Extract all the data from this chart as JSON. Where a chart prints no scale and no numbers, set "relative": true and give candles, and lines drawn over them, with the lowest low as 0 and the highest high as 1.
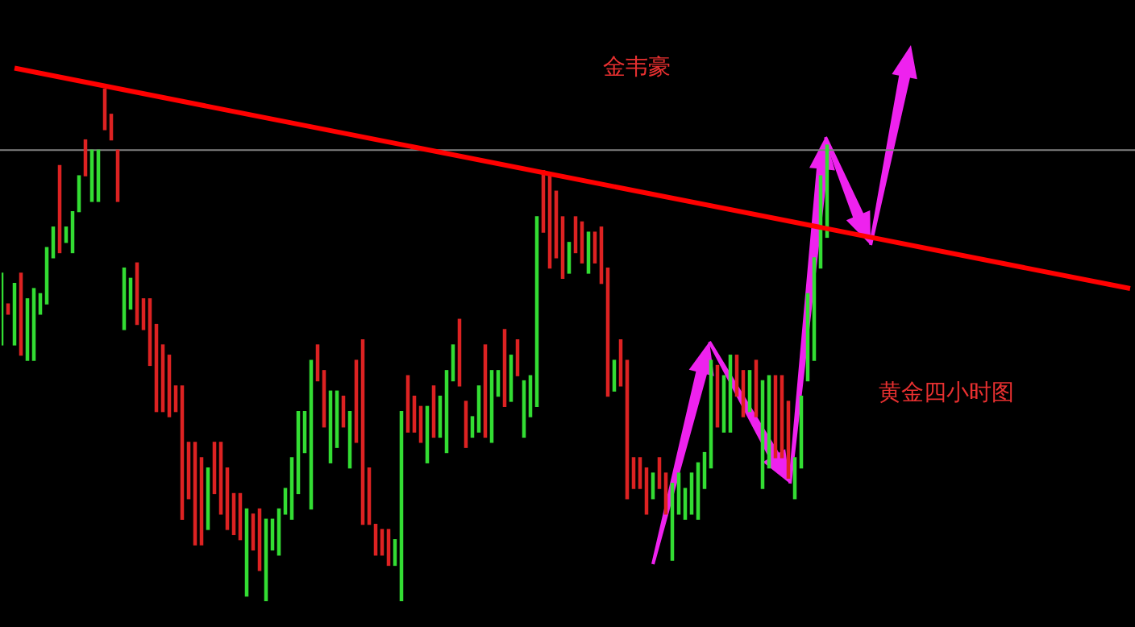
{
  "chart_data": {
    "type": "candlestick",
    "title": "黄金四小时图",
    "annotations": [
      "金韦豪"
    ],
    "relative": true,
    "tick_labels": false,
    "legend": false,
    "categories": [
      null,
      null,
      null,
      null,
      null,
      null,
      null,
      null,
      null,
      null,
      null,
      null,
      null,
      null,
      null,
      null,
      null,
      null,
      null,
      null,
      null,
      null,
      null,
      null,
      null,
      null,
      null,
      null,
      null,
      null,
      null,
      null,
      null,
      null,
      null,
      null,
      null,
      null,
      null,
      null,
      null,
      null,
      null,
      null,
      null,
      null,
      null,
      null,
      null,
      null,
      null,
      null,
      null,
      null,
      null,
      null,
      null,
      null,
      null,
      null,
      null,
      null,
      null,
      null,
      null,
      null,
      null,
      null,
      null,
      null,
      null,
      null,
      null,
      null,
      null,
      null,
      null,
      null,
      null,
      null,
      null,
      null,
      null,
      null,
      null,
      null,
      null,
      null,
      null,
      null,
      null,
      null,
      null,
      null,
      null,
      null,
      null,
      null,
      null,
      null,
      null,
      null,
      null,
      null,
      null,
      null,
      null,
      null,
      null,
      null,
      null,
      null,
      null,
      null,
      null,
      null,
      null,
      null,
      null,
      null,
      null,
      null,
      null,
      null,
      null,
      null,
      null,
      null,
      null,
      null,
      null,
      null,
      null,
      null,
      null,
      null,
      null,
      null,
      null,
      null,
      null,
      null,
      null,
      null,
      null,
      null,
      null,
      null,
      null,
      null,
      null,
      null,
      null,
      null,
      null,
      null,
      null,
      null,
      null,
      null,
      null,
      null,
      null,
      null,
      null,
      null,
      null,
      null,
      null,
      null,
      null,
      null,
      null,
      null,
      null,
      null
    ],
    "ohlc": [
      [
        0.5,
        0.64,
        0.5,
        0.64
      ],
      [
        0.58,
        0.58,
        0.56,
        0.56
      ],
      [
        0.5,
        0.62,
        0.5,
        0.62
      ],
      [
        0.64,
        0.64,
        0.48,
        0.48
      ],
      [
        0.47,
        0.59,
        0.47,
        0.59
      ],
      [
        0.47,
        0.61,
        0.47,
        0.61
      ],
      [
        0.56,
        0.6,
        0.56,
        0.6
      ],
      [
        0.58,
        0.69,
        0.58,
        0.69
      ],
      [
        0.67,
        0.73,
        0.67,
        0.73
      ],
      [
        0.85,
        0.85,
        0.68,
        0.68
      ],
      [
        0.7,
        0.73,
        0.7,
        0.73
      ],
      [
        0.68,
        0.76,
        0.68,
        0.76
      ],
      [
        0.76,
        0.83,
        0.76,
        0.83
      ],
      [
        0.9,
        0.9,
        0.83,
        0.83
      ],
      [
        0.78,
        0.88,
        0.78,
        0.88
      ],
      [
        0.78,
        0.88,
        0.78,
        0.88
      ],
      [
        1,
        1,
        0.92,
        0.92
      ],
      [
        0.95,
        0.95,
        0.9,
        0.9
      ],
      [
        0.88,
        0.88,
        0.78,
        0.78
      ],
      [
        0.53,
        0.65,
        0.53,
        0.65
      ],
      [
        0.57,
        0.63,
        0.57,
        0.63
      ],
      [
        0.66,
        0.66,
        0.54,
        0.54
      ],
      [
        0.59,
        0.59,
        0.53,
        0.53
      ],
      [
        0.59,
        0.59,
        0.46,
        0.46
      ],
      [
        0.54,
        0.54,
        0.37,
        0.37
      ],
      [
        0.5,
        0.5,
        0.37,
        0.37
      ],
      [
        0.48,
        0.48,
        0.36,
        0.36
      ],
      [
        0.42,
        0.42,
        0.37,
        0.37
      ],
      [
        0.42,
        0.42,
        0.16,
        0.16
      ],
      [
        0.31,
        0.31,
        0.2,
        0.2
      ],
      [
        0.31,
        0.31,
        0.11,
        0.11
      ],
      [
        0.28,
        0.28,
        0.11,
        0.11
      ],
      [
        0.14,
        0.26,
        0.14,
        0.26
      ],
      [
        0.31,
        0.31,
        0.21,
        0.21
      ],
      [
        0.31,
        0.31,
        0.17,
        0.17
      ],
      [
        0.26,
        0.26,
        0.14,
        0.14
      ],
      [
        0.21,
        0.21,
        0.13,
        0.13
      ],
      [
        0.21,
        0.21,
        0.12,
        0.12
      ],
      [
        0.01,
        0.18,
        0.01,
        0.18
      ],
      [
        0.17,
        0.17,
        0.1,
        0.1
      ],
      [
        0.18,
        0.18,
        0.06,
        0.06
      ],
      [
        0,
        0.16,
        0,
        0.16
      ],
      [
        0.1,
        0.16,
        0.1,
        0.16
      ],
      [
        0.09,
        0.18,
        0.09,
        0.18
      ],
      [
        0.17,
        0.22,
        0.17,
        0.22
      ],
      [
        0.16,
        0.28,
        0.16,
        0.28
      ],
      [
        0.21,
        0.37,
        0.21,
        0.37
      ],
      [
        0.29,
        0.37,
        0.29,
        0.37
      ],
      [
        0.18,
        0.47,
        0.18,
        0.47
      ],
      [
        0.5,
        0.5,
        0.43,
        0.43
      ],
      [
        0.45,
        0.45,
        0.34,
        0.34
      ],
      [
        0.27,
        0.41,
        0.27,
        0.41
      ],
      [
        0.3,
        0.41,
        0.3,
        0.41
      ],
      [
        0.4,
        0.4,
        0.34,
        0.34
      ],
      [
        0.26,
        0.37,
        0.26,
        0.37
      ],
      [
        0.47,
        0.47,
        0.31,
        0.31
      ],
      [
        0.51,
        0.51,
        0.15,
        0.15
      ],
      [
        0.26,
        0.26,
        0.15,
        0.15
      ],
      [
        0.15,
        0.15,
        0.09,
        0.09
      ],
      [
        0.14,
        0.14,
        0.09,
        0.09
      ],
      [
        0.14,
        0.14,
        0.07,
        0.07
      ],
      [
        0.07,
        0.12,
        0.07,
        0.12
      ],
      [
        0,
        0.37,
        0,
        0.37
      ],
      [
        0.44,
        0.44,
        0.33,
        0.33
      ],
      [
        0.4,
        0.4,
        0.33,
        0.33
      ],
      [
        0.38,
        0.38,
        0.31,
        0.31
      ],
      [
        0.27,
        0.38,
        0.27,
        0.38
      ],
      [
        0.42,
        0.42,
        0.32,
        0.32
      ],
      [
        0.32,
        0.4,
        0.32,
        0.4
      ],
      [
        0.29,
        0.45,
        0.29,
        0.45
      ],
      [
        0.43,
        0.5,
        0.43,
        0.5
      ],
      [
        0.55,
        0.55,
        0.42,
        0.42
      ],
      [
        0.39,
        0.39,
        0.3,
        0.3
      ],
      [
        0.32,
        0.36,
        0.32,
        0.36
      ],
      [
        0.33,
        0.42,
        0.33,
        0.42
      ],
      [
        0.5,
        0.5,
        0.32,
        0.32
      ],
      [
        0.31,
        0.45,
        0.31,
        0.45
      ],
      [
        0.4,
        0.45,
        0.4,
        0.45
      ],
      [
        0.53,
        0.53,
        0.38,
        0.38
      ],
      [
        0.39,
        0.48,
        0.39,
        0.48
      ],
      [
        0.51,
        0.51,
        0.44,
        0.44
      ],
      [
        0.32,
        0.43,
        0.32,
        0.43
      ],
      [
        0.36,
        0.44,
        0.36,
        0.44
      ],
      [
        0.38,
        0.75,
        0.38,
        0.75
      ],
      [
        0.84,
        0.84,
        0.72,
        0.72
      ],
      [
        0.83,
        0.83,
        0.65,
        0.65
      ],
      [
        0.8,
        0.8,
        0.67,
        0.67
      ],
      [
        0.75,
        0.75,
        0.63,
        0.63
      ],
      [
        0.64,
        0.7,
        0.64,
        0.7
      ],
      [
        0.75,
        0.75,
        0.68,
        0.68
      ],
      [
        0.74,
        0.74,
        0.66,
        0.66
      ],
      [
        0.64,
        0.72,
        0.64,
        0.72
      ],
      [
        0.72,
        0.72,
        0.66,
        0.66
      ],
      [
        0.73,
        0.73,
        0.62,
        0.62
      ],
      [
        0.65,
        0.65,
        0.4,
        0.4
      ],
      [
        0.41,
        0.47,
        0.41,
        0.47
      ],
      [
        0.51,
        0.51,
        0.42,
        0.42
      ],
      [
        0.47,
        0.47,
        0.2,
        0.2
      ],
      [
        0.28,
        0.28,
        0.22,
        0.22
      ],
      [
        0.28,
        0.28,
        0.22,
        0.22
      ],
      [
        0.26,
        0.26,
        0.17,
        0.17
      ],
      [
        0.2,
        0.25,
        0.2,
        0.25
      ],
      [
        0.28,
        0.28,
        0.22,
        0.22
      ],
      [
        0.25,
        0.25,
        0.17,
        0.17
      ],
      [
        0.08,
        0.23,
        0.08,
        0.23
      ],
      [
        0.17,
        0.25,
        0.17,
        0.25
      ],
      [
        0.16,
        0.22,
        0.16,
        0.22
      ],
      [
        0.17,
        0.25,
        0.17,
        0.25
      ],
      [
        0.16,
        0.27,
        0.16,
        0.27
      ],
      [
        0.22,
        0.29,
        0.22,
        0.29
      ],
      [
        0.26,
        0.47,
        0.26,
        0.47
      ],
      [
        0.46,
        0.46,
        0.34,
        0.34
      ],
      [
        0.33,
        0.44,
        0.33,
        0.44
      ],
      [
        0.33,
        0.48,
        0.33,
        0.48
      ],
      [
        0.48,
        0.48,
        0.4,
        0.4
      ],
      [
        0.45,
        0.45,
        0.36,
        0.36
      ],
      [
        0.37,
        0.45,
        0.37,
        0.45
      ],
      [
        0.47,
        0.47,
        0.36,
        0.36
      ],
      [
        0.22,
        0.43,
        0.22,
        0.43
      ],
      [
        0.26,
        0.44,
        0.26,
        0.44
      ],
      [
        0.44,
        0.44,
        0.28,
        0.28
      ],
      [
        0.44,
        0.44,
        0.28,
        0.28
      ],
      [
        0.39,
        0.39,
        0.24,
        0.24
      ],
      [
        0.2,
        0.28,
        0.2,
        0.28
      ],
      [
        0.26,
        0.4,
        0.26,
        0.4
      ],
      [
        0.43,
        0.6,
        0.43,
        0.6
      ],
      [
        0.47,
        0.67,
        0.47,
        0.67
      ],
      [
        0.65,
        0.83,
        0.65,
        0.83
      ],
      [
        0.71,
        0.89,
        0.71,
        0.89
      ],
      null,
      null,
      null,
      null,
      null,
      null,
      null,
      null,
      null,
      null,
      null,
      null,
      null,
      null,
      null,
      null,
      null,
      null,
      null,
      null,
      null,
      null,
      null,
      null,
      null,
      null,
      null,
      null,
      null,
      null,
      null,
      null,
      null,
      null,
      null,
      null,
      null,
      null,
      null,
      null,
      null,
      null,
      null,
      null,
      null,
      null,
      null
    ],
    "series": [
      {
        "type": "line",
        "color": "#ff0000",
        "values": [
          null,
          null,
          1.04,
          null,
          null,
          null,
          null,
          null,
          null,
          null,
          null,
          null,
          null,
          null,
          null,
          null,
          null,
          null,
          null,
          null,
          null,
          null,
          null,
          null,
          null,
          null,
          null,
          null,
          null,
          null,
          null,
          null,
          null,
          null,
          null,
          null,
          null,
          null,
          null,
          null,
          null,
          null,
          null,
          null,
          null,
          null,
          null,
          null,
          null,
          null,
          null,
          null,
          null,
          null,
          null,
          null,
          null,
          null,
          null,
          null,
          null,
          null,
          null,
          null,
          null,
          null,
          null,
          null,
          null,
          null,
          null,
          null,
          null,
          null,
          null,
          null,
          null,
          null,
          null,
          null,
          null,
          null,
          null,
          null,
          null,
          null,
          null,
          null,
          null,
          null,
          null,
          null,
          null,
          null,
          null,
          null,
          null,
          null,
          null,
          null,
          null,
          null,
          null,
          null,
          null,
          null,
          null,
          null,
          null,
          null,
          null,
          null,
          null,
          null,
          null,
          null,
          null,
          null,
          null,
          null,
          null,
          null,
          null,
          null,
          null,
          null,
          null,
          null,
          null,
          null,
          null,
          null,
          null,
          null,
          null,
          null,
          null,
          null,
          null,
          null,
          null,
          null,
          null,
          null,
          null,
          null,
          null,
          null,
          null,
          null,
          null,
          null,
          null,
          null,
          null,
          null,
          null,
          null,
          null,
          null,
          null,
          null,
          null,
          null,
          null,
          null,
          null,
          null,
          null,
          null,
          null,
          null,
          null,
          null,
          null,
          0.61
        ]
      }
    ],
    "ref_lines": [
      {
        "axis": "y",
        "value": 0.88,
        "color": "#808080"
      }
    ]
  }
}
